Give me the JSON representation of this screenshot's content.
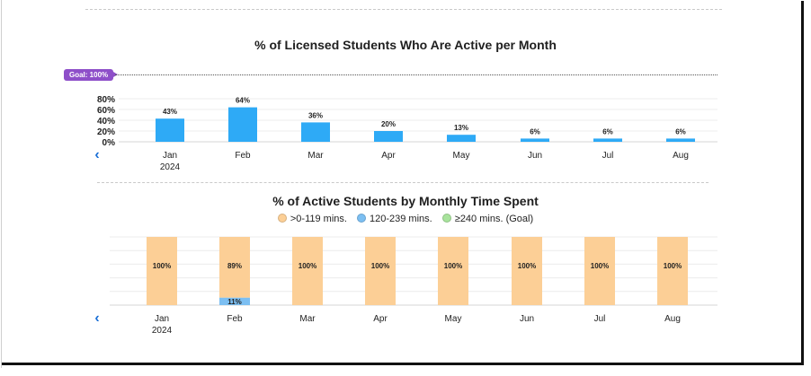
{
  "chart_data": [
    {
      "type": "bar",
      "title": "% of Licensed Students Who Are Active per Month",
      "categories": [
        "Jan",
        "Feb",
        "Mar",
        "Apr",
        "May",
        "Jun",
        "Jul",
        "Aug"
      ],
      "category_sublabels": [
        "2024",
        "",
        "",
        "",
        "",
        "",
        "",
        ""
      ],
      "values": [
        43,
        64,
        36,
        20,
        13,
        6,
        6,
        6
      ],
      "value_labels": [
        "43%",
        "64%",
        "36%",
        "20%",
        "13%",
        "6%",
        "6%",
        "6%"
      ],
      "yticks": [
        "0%",
        "20%",
        "40%",
        "60%",
        "80%"
      ],
      "ylim": [
        0,
        100
      ],
      "goal": {
        "label": "Goal: 100%",
        "value": 100
      },
      "bar_color": "#2eaaf6"
    },
    {
      "type": "bar",
      "stacked": true,
      "title": "% of Active Students by Monthly Time Spent",
      "categories": [
        "Jan",
        "Feb",
        "Mar",
        "Apr",
        "May",
        "Jun",
        "Jul",
        "Aug"
      ],
      "category_sublabels": [
        "2024",
        "",
        "",
        "",
        "",
        "",
        "",
        ""
      ],
      "ylim": [
        0,
        100
      ],
      "legend_position": "top",
      "series": [
        {
          "name": ">0-119 mins.",
          "color": "#fccf96",
          "values": [
            100,
            89,
            100,
            100,
            100,
            100,
            100,
            100
          ],
          "value_labels": [
            "100%",
            "89%",
            "100%",
            "100%",
            "100%",
            "100%",
            "100%",
            "100%"
          ]
        },
        {
          "name": "120-239 mins.",
          "color": "#7cbff2",
          "values": [
            0,
            11,
            0,
            0,
            0,
            0,
            0,
            0
          ],
          "value_labels": [
            "",
            "11%",
            "",
            "",
            "",
            "",
            "",
            ""
          ]
        },
        {
          "name": "≥240 mins. (Goal)",
          "color": "#a8e39c",
          "values": [
            0,
            0,
            0,
            0,
            0,
            0,
            0,
            0
          ],
          "value_labels": [
            "",
            "",
            "",
            "",
            "",
            "",
            "",
            ""
          ]
        }
      ]
    }
  ],
  "nav": {
    "prev_icon": "‹"
  }
}
